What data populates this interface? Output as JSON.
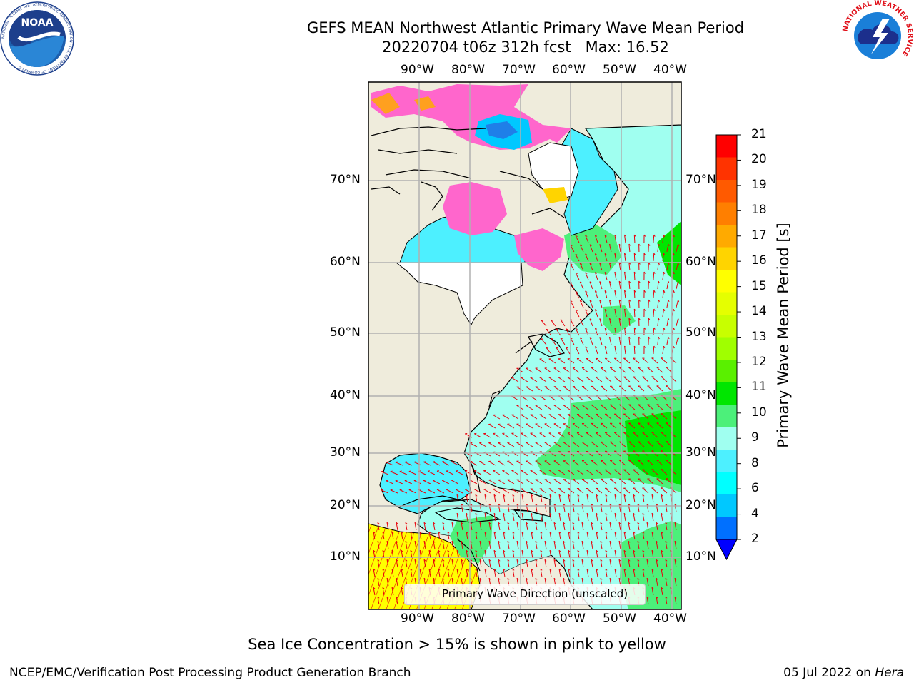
{
  "header": {
    "title_line1": "GEFS MEAN Northwest Atlantic Primary Wave Mean Period",
    "title_line2": "20220704 t06z 312h fcst   Max: 16.52"
  },
  "logos": {
    "noaa_text": "NOAA",
    "noaa_ring": "NATIONAL OCEANIC AND ATMOSPHERIC ADMINISTRATION · U.S. DEPARTMENT OF COMMERCE",
    "nws_ring": "NATIONAL WEATHER SERVICE"
  },
  "map": {
    "lon_ticks": [
      "90°W",
      "80°W",
      "70°W",
      "60°W",
      "50°W",
      "40°W"
    ],
    "lat_ticks": [
      "70°N",
      "60°N",
      "50°N",
      "40°N",
      "30°N",
      "20°N",
      "10°N"
    ],
    "legend_label": "Primary Wave Direction (unscaled)",
    "colors": {
      "land": "#efecdc",
      "ice_white": "#ffffff",
      "arrow": "#e8000b"
    }
  },
  "colorbar": {
    "label": "Primary Wave Mean Period [s]",
    "ticks": [
      "21",
      "20",
      "19",
      "18",
      "17",
      "16",
      "15",
      "14",
      "13",
      "12",
      "11",
      "10",
      "9",
      "8",
      "6",
      "4",
      "2"
    ],
    "colors": [
      "#ff0000",
      "#ff3300",
      "#ff5a00",
      "#ff7f00",
      "#ffaa00",
      "#ffd400",
      "#ffff00",
      "#e5ff00",
      "#c8ff00",
      "#a0ff00",
      "#5af000",
      "#00e600",
      "#4cf07a",
      "#a0fff0",
      "#4df0ff",
      "#00ffff",
      "#00c8ff",
      "#0070ff"
    ],
    "underflow_color": "#0000ff"
  },
  "footer": {
    "note": "Sea Ice Concentration > 15% is shown in pink to yellow",
    "left": "NCEP/EMC/Verification Post Processing Product Generation Branch",
    "date": "05 Jul 2022 on ",
    "host": "Hera"
  }
}
